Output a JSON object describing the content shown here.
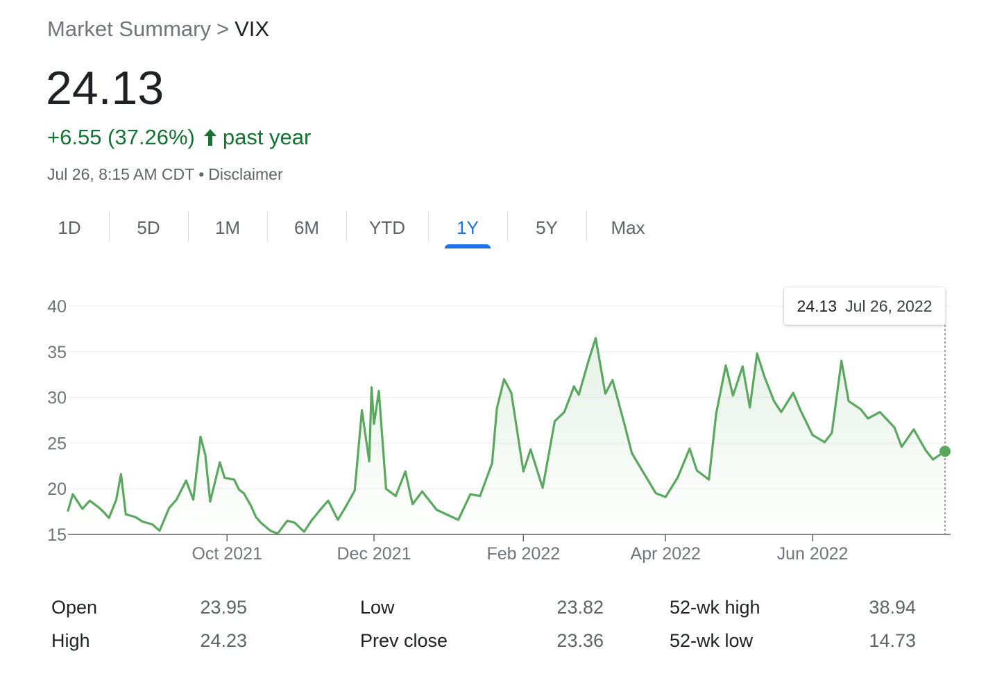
{
  "breadcrumb": {
    "parent": "Market Summary",
    "separator": ">",
    "current": "VIX"
  },
  "price": "24.13",
  "change": {
    "text": "+6.55 (37.26%)",
    "period": "past year",
    "arrow_icon": "arrow-up-icon",
    "color": "#137333"
  },
  "meta": {
    "timestamp": "Jul 26, 8:15 AM CDT",
    "separator": "•",
    "disclaimer": "Disclaimer"
  },
  "tabs": [
    {
      "label": "1D"
    },
    {
      "label": "5D"
    },
    {
      "label": "1M"
    },
    {
      "label": "6M"
    },
    {
      "label": "YTD"
    },
    {
      "label": "1Y",
      "active": true
    },
    {
      "label": "5Y"
    },
    {
      "label": "Max"
    }
  ],
  "tooltip": {
    "value": "24.13",
    "date": "Jul 26, 2022"
  },
  "colors": {
    "line": "#5aa75f",
    "accent": "#1a73e8",
    "positive": "#137333"
  },
  "chart_data": {
    "type": "line",
    "title": "",
    "xlabel": "",
    "ylabel": "",
    "ylim": [
      15,
      40
    ],
    "yticks": [
      15,
      20,
      25,
      30,
      35,
      40
    ],
    "xlim": [
      "2021-07-27",
      "2022-07-26"
    ],
    "xticks": [
      {
        "label": "Oct 2021",
        "date": "2021-10-01"
      },
      {
        "label": "Dec 2021",
        "date": "2021-12-01"
      },
      {
        "label": "Feb 2022",
        "date": "2022-02-01"
      },
      {
        "label": "Apr 2022",
        "date": "2022-04-01"
      },
      {
        "label": "Jun 2022",
        "date": "2022-06-01"
      }
    ],
    "grid": true,
    "series": [
      {
        "x": [
          "2021-07-27",
          "2021-07-29",
          "2021-08-02",
          "2021-08-05",
          "2021-08-09",
          "2021-08-11",
          "2021-08-13",
          "2021-08-16",
          "2021-08-18",
          "2021-08-20",
          "2021-08-24",
          "2021-08-27",
          "2021-08-31",
          "2021-09-03",
          "2021-09-07",
          "2021-09-10",
          "2021-09-14",
          "2021-09-17",
          "2021-09-20",
          "2021-09-22",
          "2021-09-24",
          "2021-09-28",
          "2021-09-30",
          "2021-10-04",
          "2021-10-06",
          "2021-10-08",
          "2021-10-11",
          "2021-10-13",
          "2021-10-15",
          "2021-10-19",
          "2021-10-22",
          "2021-10-26",
          "2021-10-29",
          "2021-11-02",
          "2021-11-05",
          "2021-11-09",
          "2021-11-12",
          "2021-11-16",
          "2021-11-19",
          "2021-11-23",
          "2021-11-26",
          "2021-11-29",
          "2021-11-30",
          "2021-12-01",
          "2021-12-03",
          "2021-12-06",
          "2021-12-10",
          "2021-12-14",
          "2021-12-17",
          "2021-12-21",
          "2021-12-27",
          "2021-12-31",
          "2022-01-05",
          "2022-01-10",
          "2022-01-14",
          "2022-01-19",
          "2022-01-21",
          "2022-01-24",
          "2022-01-27",
          "2022-02-01",
          "2022-02-04",
          "2022-02-09",
          "2022-02-14",
          "2022-02-18",
          "2022-02-22",
          "2022-02-24",
          "2022-02-28",
          "2022-03-03",
          "2022-03-07",
          "2022-03-10",
          "2022-03-15",
          "2022-03-18",
          "2022-03-23",
          "2022-03-28",
          "2022-04-01",
          "2022-04-06",
          "2022-04-11",
          "2022-04-14",
          "2022-04-19",
          "2022-04-22",
          "2022-04-26",
          "2022-04-29",
          "2022-05-03",
          "2022-05-06",
          "2022-05-09",
          "2022-05-12",
          "2022-05-16",
          "2022-05-19",
          "2022-05-24",
          "2022-05-27",
          "2022-06-01",
          "2022-06-06",
          "2022-06-09",
          "2022-06-13",
          "2022-06-16",
          "2022-06-21",
          "2022-06-24",
          "2022-06-29",
          "2022-07-05",
          "2022-07-08",
          "2022-07-13",
          "2022-07-18",
          "2022-07-21",
          "2022-07-26"
        ],
        "values": [
          17.6,
          19.4,
          17.8,
          18.7,
          17.9,
          17.4,
          16.8,
          18.8,
          21.6,
          17.2,
          16.9,
          16.4,
          16.1,
          15.4,
          17.9,
          18.8,
          20.9,
          18.8,
          25.7,
          23.7,
          18.6,
          22.9,
          21.2,
          21.0,
          19.9,
          19.5,
          18.1,
          16.9,
          16.3,
          15.4,
          15.1,
          16.5,
          16.3,
          15.3,
          16.5,
          17.8,
          18.7,
          16.6,
          17.9,
          19.8,
          28.6,
          23.0,
          31.1,
          27.1,
          30.7,
          20.0,
          19.2,
          21.9,
          18.3,
          19.7,
          17.7,
          17.2,
          16.6,
          19.4,
          19.2,
          22.8,
          28.8,
          32.0,
          30.5,
          21.9,
          24.3,
          20.1,
          27.4,
          28.4,
          31.2,
          30.3,
          34.0,
          36.5,
          30.4,
          31.9,
          27.0,
          23.9,
          21.7,
          19.5,
          19.1,
          21.2,
          24.4,
          22.0,
          21.0,
          28.2,
          33.5,
          30.2,
          33.4,
          28.9,
          34.8,
          32.3,
          29.6,
          28.4,
          30.5,
          28.6,
          25.9,
          25.1,
          26.1,
          34.0,
          29.6,
          28.7,
          27.7,
          28.4,
          26.7,
          24.6,
          26.5,
          24.2,
          23.2,
          24.1
        ]
      }
    ]
  },
  "stats": {
    "col1": [
      {
        "label": "Open",
        "value": "23.95"
      },
      {
        "label": "High",
        "value": "24.23"
      }
    ],
    "col2": [
      {
        "label": "Low",
        "value": "23.82"
      },
      {
        "label": "Prev close",
        "value": "23.36"
      }
    ],
    "col3": [
      {
        "label": "52-wk high",
        "value": "38.94"
      },
      {
        "label": "52-wk low",
        "value": "14.73"
      }
    ]
  }
}
